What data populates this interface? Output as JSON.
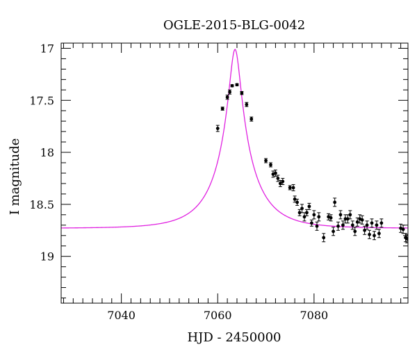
{
  "chart_data": {
    "type": "scatter",
    "title": "OGLE-2015-BLG-0042",
    "xlabel": "HJD - 2450000",
    "ylabel": "I magnitude",
    "xlim": [
      7027.5,
      7099.5
    ],
    "ylim": [
      19.45,
      16.95
    ],
    "y_inverted": true,
    "x_major_ticks": [
      7040,
      7060,
      7080
    ],
    "x_tick_labels": [
      "7040",
      "7060",
      "7080"
    ],
    "y_major_ticks": [
      17,
      17.5,
      18,
      18.5,
      19
    ],
    "y_tick_labels": [
      "17",
      "17.5",
      "18",
      "18.5",
      "19"
    ],
    "grid": false,
    "legend": "none",
    "colors": {
      "points": "#000000",
      "model": "#e020e0",
      "axes": "#000000"
    },
    "model_curve": {
      "name": "",
      "t0": 7063.6,
      "u0": 0.135,
      "tE": 8.2,
      "I_base": 18.73,
      "blending_fs": 0.6
    },
    "series": [
      {
        "name": "",
        "x": [
          7060.0,
          7061.0,
          7062.0,
          7062.5,
          7063.0,
          7064.0,
          7065.0,
          7066.0,
          7067.0,
          7070.0,
          7071.0,
          7071.5,
          7072.0,
          7072.5,
          7073.0,
          7073.5,
          7075.0,
          7075.7,
          7076.0,
          7076.5,
          7077.0,
          7077.5,
          7078.0,
          7078.5,
          7079.0,
          7079.5,
          7080.0,
          7080.6,
          7081.0,
          7082.0,
          7083.0,
          7083.5,
          7084.0,
          7084.3,
          7085.0,
          7085.5,
          7086.0,
          7086.5,
          7087.0,
          7087.5,
          7088.0,
          7088.5,
          7089.0,
          7089.5,
          7090.0,
          7090.5,
          7091.0,
          7091.5,
          7092.0,
          7092.5,
          7093.0,
          7093.5,
          7094.0,
          7098.0,
          7098.5,
          7099.0,
          7099.3
        ],
        "y": [
          17.77,
          17.58,
          17.47,
          17.42,
          17.36,
          17.35,
          17.43,
          17.54,
          17.68,
          18.08,
          18.12,
          18.21,
          18.2,
          18.25,
          18.3,
          18.28,
          18.34,
          18.34,
          18.45,
          18.48,
          18.58,
          18.54,
          18.62,
          18.58,
          18.52,
          18.68,
          18.6,
          18.71,
          18.62,
          18.82,
          18.62,
          18.63,
          18.76,
          18.48,
          18.71,
          18.6,
          18.7,
          18.64,
          18.64,
          18.6,
          18.7,
          18.76,
          18.67,
          18.64,
          18.65,
          18.75,
          18.7,
          18.79,
          18.68,
          18.8,
          18.7,
          18.78,
          18.68,
          18.73,
          18.74,
          18.82,
          18.83
        ],
        "yerr": [
          0.03,
          0.015,
          0.02,
          0.02,
          0.01,
          0.01,
          0.015,
          0.02,
          0.02,
          0.02,
          0.02,
          0.03,
          0.03,
          0.03,
          0.03,
          0.03,
          0.02,
          0.03,
          0.03,
          0.03,
          0.03,
          0.04,
          0.04,
          0.03,
          0.03,
          0.03,
          0.04,
          0.04,
          0.04,
          0.04,
          0.03,
          0.03,
          0.04,
          0.04,
          0.04,
          0.04,
          0.04,
          0.04,
          0.04,
          0.04,
          0.04,
          0.04,
          0.04,
          0.04,
          0.04,
          0.04,
          0.04,
          0.04,
          0.04,
          0.04,
          0.04,
          0.04,
          0.04,
          0.04,
          0.04,
          0.04,
          0.04
        ]
      }
    ]
  }
}
